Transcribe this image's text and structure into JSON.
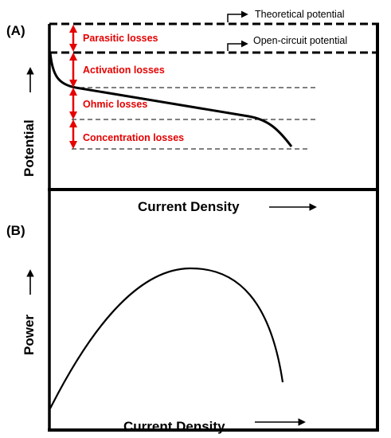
{
  "panel_a": {
    "label": "(A)",
    "y_axis_label": "Potential",
    "x_axis_label": "Current Density",
    "theoretical_label": "Theoretical potential",
    "ocv_label": "Open-circuit potential",
    "losses": [
      "Parasitic losses",
      "Activation losses",
      "Ohmic losses",
      "Concentration losses"
    ]
  },
  "panel_b": {
    "label": "(B)",
    "y_axis_label": "Power",
    "x_axis_label": "Current Density"
  },
  "colors": {
    "loss_red": "#e60000",
    "line": "#000000"
  }
}
